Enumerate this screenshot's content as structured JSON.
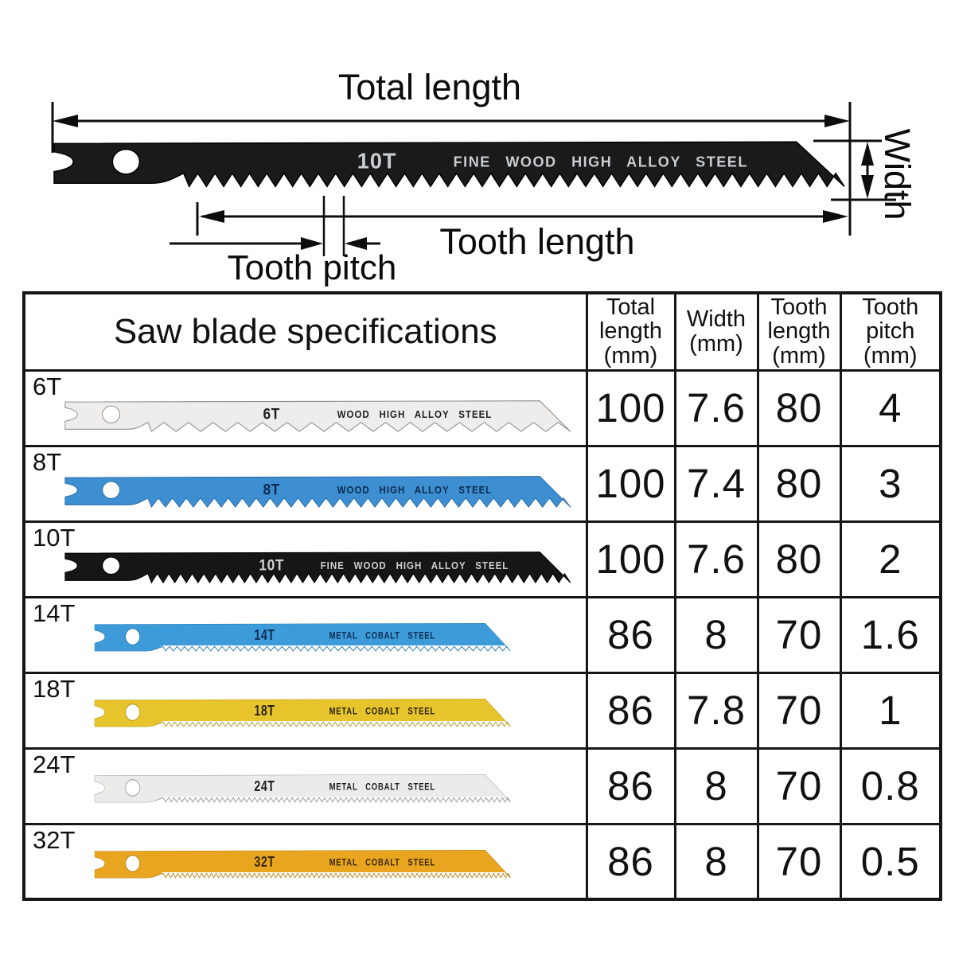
{
  "diagram": {
    "total_length_label": "Total length",
    "width_label": "Width",
    "tooth_length_label": "Tooth length",
    "tooth_pitch_label": "Tooth pitch",
    "blade": {
      "model": "10T",
      "material": "FINE WOOD HIGH ALLOY STEEL",
      "color": "#1a1a1a",
      "edge": "#000000",
      "text_color": "#c9cdd2",
      "teeth": 38,
      "style": "coarse"
    }
  },
  "table": {
    "title": "Saw blade specifications",
    "columns": [
      {
        "lines": [
          "Total",
          "length",
          "(mm)"
        ]
      },
      {
        "lines": [
          "Width",
          "(mm)"
        ]
      },
      {
        "lines": [
          "Tooth",
          "length",
          "(mm)"
        ]
      },
      {
        "lines": [
          "Tooth",
          "pitch",
          "(mm)"
        ]
      }
    ],
    "rows": [
      {
        "label": "6T",
        "blade": {
          "model": "6T",
          "material": "WOOD HIGH ALLOY STEEL",
          "color": "#eeedeb",
          "edge": "#8e8e8e",
          "text_color": "#1e1e1e",
          "teeth": 17,
          "style": "coarse",
          "size": "long"
        },
        "values": [
          "100",
          "7.6",
          "80",
          "4"
        ]
      },
      {
        "label": "8T",
        "blade": {
          "model": "8T",
          "material": "WOOD HIGH ALLOY STEEL",
          "color": "#3d8fd1",
          "edge": "#2b6ea8",
          "text_color": "#0c2b4e",
          "teeth": 30,
          "style": "coarse",
          "size": "long"
        },
        "values": [
          "100",
          "7.4",
          "80",
          "3"
        ]
      },
      {
        "label": "10T",
        "blade": {
          "model": "10T",
          "material": "FINE WOOD HIGH ALLOY STEEL",
          "color": "#161616",
          "edge": "#000000",
          "text_color": "#cfcfcf",
          "teeth": 36,
          "style": "coarse",
          "size": "long"
        },
        "values": [
          "100",
          "7.6",
          "80",
          "2"
        ]
      },
      {
        "label": "14T",
        "blade": {
          "model": "14T",
          "material": "METAL COBALT STEEL",
          "color": "#3e9bd9",
          "edge": "#2b79b4",
          "text_color": "#0e2d52",
          "teeth": 46,
          "style": "fine",
          "size": "short"
        },
        "values": [
          "86",
          "8",
          "70",
          "1.6"
        ]
      },
      {
        "label": "18T",
        "blade": {
          "model": "18T",
          "material": "METAL COBALT STEEL",
          "color": "#e7c32c",
          "edge": "#b49718",
          "text_color": "#2b2410",
          "teeth": 58,
          "style": "fine",
          "size": "short"
        },
        "values": [
          "86",
          "7.8",
          "70",
          "1"
        ]
      },
      {
        "label": "24T",
        "blade": {
          "model": "24T",
          "material": "METAL COBALT STEEL",
          "color": "#ebebe9",
          "edge": "#9a9a98",
          "text_color": "#1e1e1e",
          "teeth": 64,
          "style": "fine",
          "size": "short"
        },
        "values": [
          "86",
          "8",
          "70",
          "0.8"
        ]
      },
      {
        "label": "32T",
        "blade": {
          "model": "32T",
          "material": "METAL COBALT STEEL",
          "color": "#e9a520",
          "edge": "#b57d12",
          "text_color": "#3a2a08",
          "teeth": 72,
          "style": "fine",
          "size": "short"
        },
        "values": [
          "86",
          "8",
          "70",
          "0.5"
        ]
      }
    ]
  }
}
